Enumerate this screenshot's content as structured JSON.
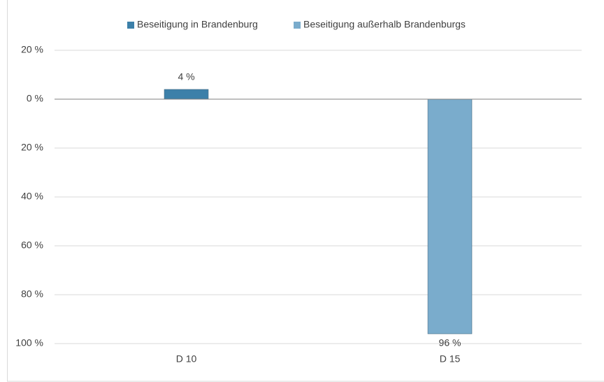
{
  "chart_data": {
    "type": "bar",
    "categories": [
      "D 10",
      "D 15"
    ],
    "series": [
      {
        "name": "Beseitigung in Brandenburg",
        "color": "#3c80a9",
        "values": [
          4,
          null
        ],
        "value_labels": [
          "4 %",
          null
        ]
      },
      {
        "name": "Beseitigung außerhalb Brandenburgs",
        "color": "#7aaccc",
        "values": [
          null,
          -96
        ],
        "value_labels": [
          null,
          "96 %"
        ]
      }
    ],
    "ylim": [
      -100,
      20
    ],
    "yticks": [
      {
        "value": 20,
        "label": "20 %"
      },
      {
        "value": 0,
        "label": "0 %"
      },
      {
        "value": -20,
        "label": "20 %"
      },
      {
        "value": -40,
        "label": "40 %"
      },
      {
        "value": -60,
        "label": "60 %"
      },
      {
        "value": -80,
        "label": "80 %"
      },
      {
        "value": -100,
        "label": "100 %"
      }
    ],
    "grid": true,
    "legend": "top"
  }
}
